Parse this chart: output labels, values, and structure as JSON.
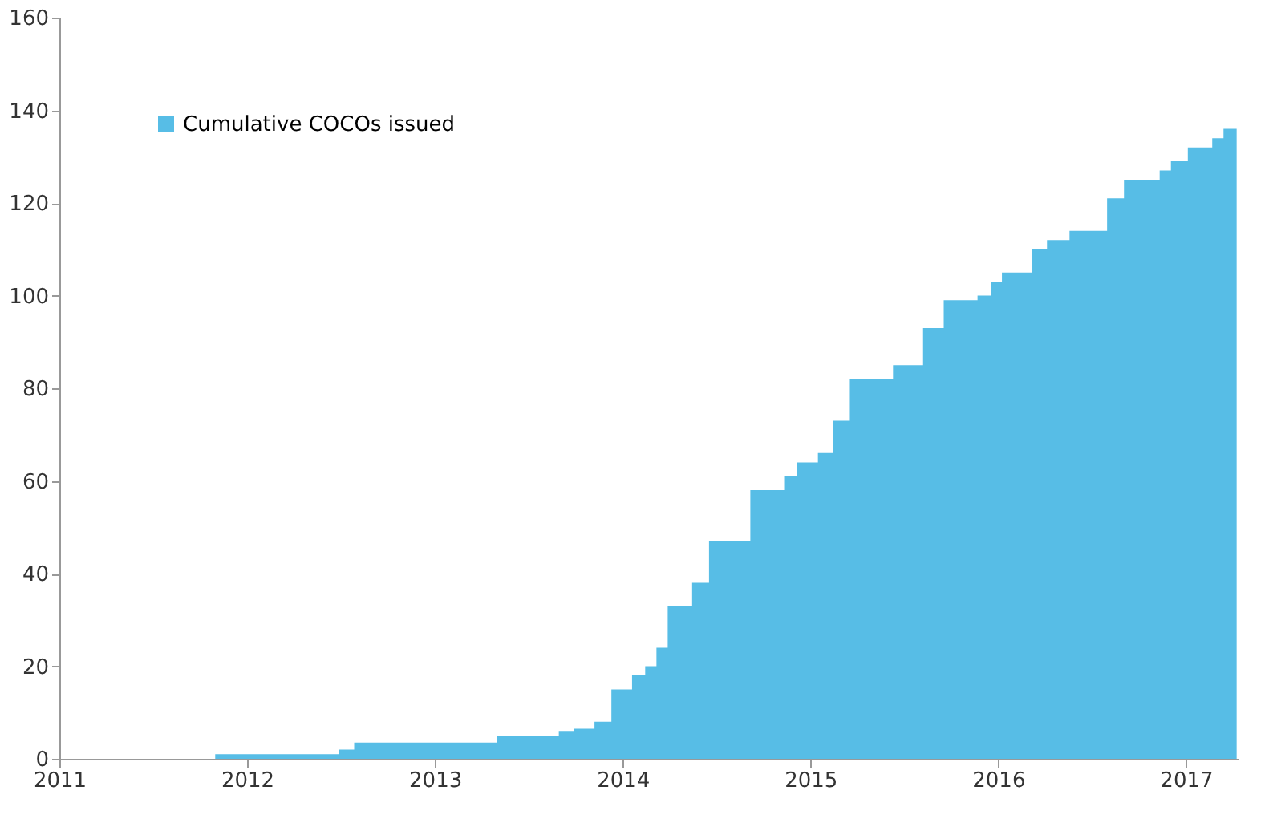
{
  "chart_data": {
    "type": "area",
    "x": [
      2011,
      2011.83,
      2012.49,
      2012.57,
      2013.33,
      2013.66,
      2013.74,
      2013.85,
      2013.94,
      2014.05,
      2014.12,
      2014.18,
      2014.24,
      2014.37,
      2014.46,
      2014.68,
      2014.86,
      2014.93,
      2015.04,
      2015.12,
      2015.21,
      2015.44,
      2015.6,
      2015.71,
      2015.89,
      2015.96,
      2016.02,
      2016.18,
      2016.26,
      2016.38,
      2016.58,
      2016.67,
      2016.86,
      2016.92,
      2017.01,
      2017.14,
      2017.2,
      2017.27
    ],
    "series": [
      {
        "name": "Cumulative COCOs issued",
        "color": "#57bde6",
        "values": [
          0,
          1,
          2,
          3.5,
          5,
          6,
          6.5,
          8,
          15,
          18,
          20,
          24,
          33,
          38,
          47,
          58,
          61,
          64,
          66,
          73,
          82,
          85,
          93,
          99,
          100,
          103,
          105,
          110,
          112,
          114,
          121,
          125,
          127,
          129,
          132,
          134,
          136,
          138
        ]
      }
    ],
    "xlim": [
      2011,
      2017.28
    ],
    "xticks": [
      2011,
      2012,
      2013,
      2014,
      2015,
      2016,
      2017
    ],
    "ylim": [
      0,
      160
    ],
    "yticks": [
      0,
      20,
      40,
      60,
      80,
      100,
      120,
      140,
      160
    ],
    "grid": false,
    "legend": "top left"
  }
}
